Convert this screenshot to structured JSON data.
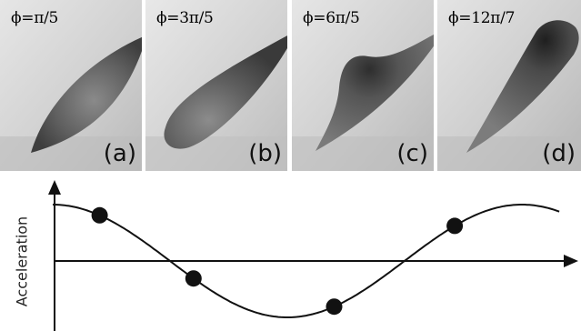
{
  "panels": [
    {
      "phase": "ϕ=π/5",
      "label": "(a)",
      "phase_value": 0.2
    },
    {
      "phase": "ϕ=3π/5",
      "label": "(b)",
      "phase_value": 0.6
    },
    {
      "phase": "ϕ=6π/5",
      "label": "(c)",
      "phase_value": 1.2
    },
    {
      "phase": "ϕ=12π/7",
      "label": "(d)",
      "phase_value": 1.714
    }
  ],
  "graph": {
    "ylabel": "Acceleration",
    "curve": "cosine",
    "markers": [
      0.2,
      0.6,
      1.2,
      1.714
    ]
  }
}
